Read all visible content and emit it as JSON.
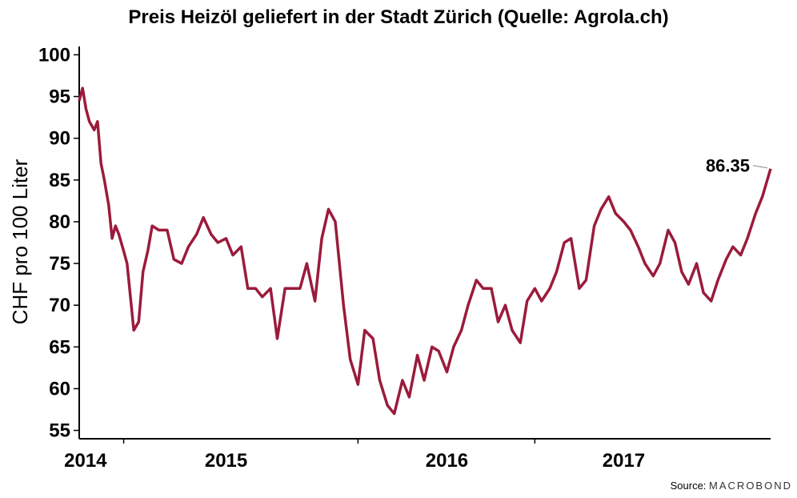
{
  "title": "Preis Heizöl geliefert in der Stadt Zürich (Quelle: Agrola.ch)",
  "source": {
    "prefix": "Source:",
    "brand": "MACROBOND"
  },
  "colors": {
    "line": "#9b1b3b",
    "axis": "#000000"
  },
  "chart_data": {
    "type": "line",
    "title": "Preis Heizöl geliefert in der Stadt Zürich (Quelle: Agrola.ch)",
    "ylabel": "CHF pro 100 Liter",
    "xlabel": "",
    "ylim": [
      54,
      101
    ],
    "yticks": [
      55,
      60,
      65,
      70,
      75,
      80,
      85,
      90,
      95,
      100
    ],
    "xlim": [
      "2013-10-01",
      "2017-09-01"
    ],
    "xtick_labels": [
      {
        "label": "2014",
        "date": "2013-10-14"
      },
      {
        "label": "2015",
        "date": "2014-08-01"
      },
      {
        "label": "2016",
        "date": "2015-11-01"
      },
      {
        "label": "2017",
        "date": "2016-11-01"
      }
    ],
    "xtick_marks": [
      "2014-01-01",
      "2015-05-01",
      "2016-05-01"
    ],
    "last_value_label": "86.35",
    "series": [
      {
        "name": "",
        "x": [
          "2013-10-01",
          "2013-10-08",
          "2013-10-15",
          "2013-10-22",
          "2013-11-01",
          "2013-11-08",
          "2013-11-15",
          "2013-11-22",
          "2013-12-01",
          "2013-12-08",
          "2013-12-15",
          "2013-12-22",
          "2014-01-01",
          "2014-01-08",
          "2014-01-15",
          "2014-01-22",
          "2014-02-01",
          "2014-02-10",
          "2014-02-20",
          "2014-03-01",
          "2014-03-15",
          "2014-04-01",
          "2014-04-15",
          "2014-05-01",
          "2014-05-15",
          "2014-06-01",
          "2014-06-15",
          "2014-07-01",
          "2014-07-15",
          "2014-08-01",
          "2014-08-15",
          "2014-09-01",
          "2014-09-15",
          "2014-10-01",
          "2014-10-15",
          "2014-11-01",
          "2014-11-15",
          "2014-12-01",
          "2014-12-15",
          "2015-01-01",
          "2015-01-15",
          "2015-02-01",
          "2015-02-15",
          "2015-03-01",
          "2015-03-15",
          "2015-04-01",
          "2015-04-15",
          "2015-05-01",
          "2015-05-15",
          "2015-06-01",
          "2015-06-15",
          "2015-07-01",
          "2015-07-15",
          "2015-08-01",
          "2015-08-15",
          "2015-09-01",
          "2015-09-15",
          "2015-10-01",
          "2015-10-15",
          "2015-11-01",
          "2015-11-15",
          "2015-12-01",
          "2015-12-15",
          "2016-01-01",
          "2016-01-15",
          "2016-02-01",
          "2016-02-15",
          "2016-03-01",
          "2016-03-15",
          "2016-04-01",
          "2016-04-15",
          "2016-05-01",
          "2016-05-15",
          "2016-06-01",
          "2016-06-15",
          "2016-07-01",
          "2016-07-15",
          "2016-08-01",
          "2016-08-15",
          "2016-09-01",
          "2016-09-15",
          "2016-10-01",
          "2016-10-15",
          "2016-11-01",
          "2016-11-15",
          "2016-12-01",
          "2016-12-15",
          "2017-01-01",
          "2017-01-15",
          "2017-02-01",
          "2017-02-15",
          "2017-03-01",
          "2017-03-15",
          "2017-04-01",
          "2017-04-15",
          "2017-05-01",
          "2017-05-15",
          "2017-06-01",
          "2017-06-15",
          "2017-07-01",
          "2017-07-15",
          "2017-08-01",
          "2017-08-15",
          "2017-09-01"
        ],
        "values": [
          94.5,
          96.0,
          93.5,
          92.0,
          91.0,
          92.0,
          87.0,
          85.0,
          82.0,
          78.0,
          79.5,
          78.5,
          76.5,
          75.0,
          71.0,
          67.0,
          68.0,
          74.0,
          76.5,
          79.5,
          79.0,
          79.0,
          75.5,
          75.0,
          77.0,
          78.5,
          80.5,
          78.5,
          77.5,
          78.0,
          76.0,
          77.0,
          72.0,
          72.0,
          71.0,
          72.0,
          66.0,
          72.0,
          72.0,
          72.0,
          75.0,
          70.5,
          78.0,
          81.5,
          80.0,
          70.0,
          63.5,
          60.5,
          67.0,
          66.0,
          61.0,
          58.0,
          57.0,
          61.0,
          59.0,
          64.0,
          61.0,
          65.0,
          64.5,
          62.0,
          65.0,
          67.0,
          70.0,
          73.0,
          72.0,
          72.0,
          68.0,
          70.0,
          67.0,
          65.5,
          70.5,
          72.0,
          70.5,
          72.0,
          74.0,
          77.5,
          78.0,
          72.0,
          73.0,
          79.5,
          81.5,
          83.0,
          81.0,
          80.0,
          79.0,
          77.0,
          75.0,
          73.5,
          75.0,
          79.0,
          77.5,
          74.0,
          72.5,
          75.0,
          71.5,
          70.5,
          73.0,
          75.5,
          77.0,
          76.0,
          78.0,
          81.0,
          83.0,
          86.35
        ]
      }
    ]
  }
}
